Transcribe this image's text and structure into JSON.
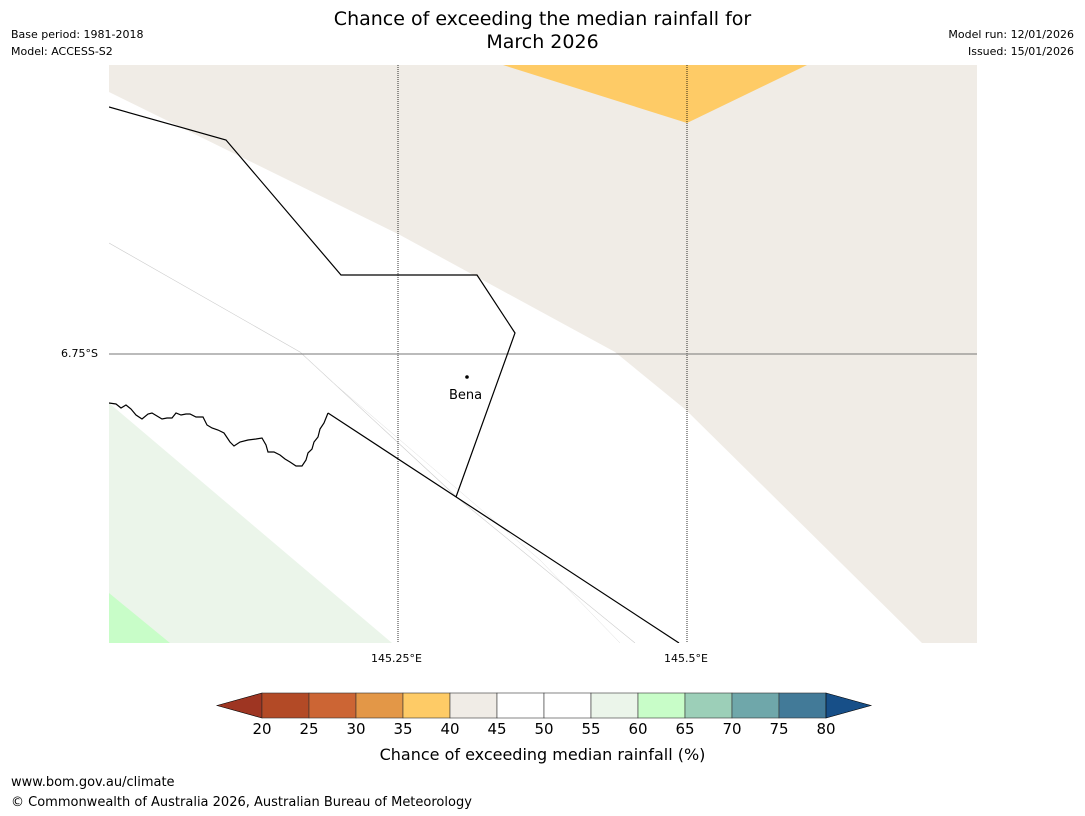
{
  "title_line1": "Chance of exceeding the median rainfall for",
  "title_line2": "March 2026",
  "left_meta": [
    "Base period: 1981-2018",
    "Model: ACCESS-S2"
  ],
  "right_meta": [
    "Model run: 12/01/2026",
    "Issued: 15/01/2026"
  ],
  "map": {
    "lat_label": "6.75°S",
    "lon_labels": [
      "145.25°E",
      "145.5°E"
    ],
    "place": "Bena"
  },
  "colorbar": {
    "ticks": [
      "20",
      "25",
      "30",
      "35",
      "40",
      "45",
      "50",
      "55",
      "60",
      "65",
      "70",
      "75",
      "80"
    ],
    "colors": [
      "#9e3522",
      "#b34a26",
      "#cc6534",
      "#e39747",
      "#fecb66",
      "#f0ece6",
      "#ffffff",
      "#ffffff",
      "#ebf5ea",
      "#c8fdc8",
      "#9ccfb8",
      "#6fa7aa",
      "#427a98",
      "#174f88"
    ],
    "label": "Chance of exceeding median rainfall (%)"
  },
  "footer": [
    "www.bom.gov.au/climate",
    "© Commonwealth of Australia 2026, Australian Bureau of Meteorology"
  ]
}
